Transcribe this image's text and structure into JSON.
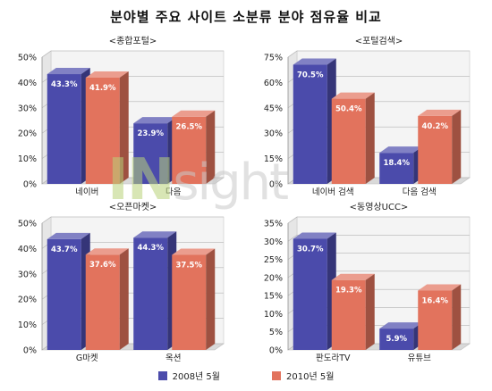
{
  "title": "분야별 주요 사이트 소분류 분야 점유율 비교",
  "watermark": {
    "left": "IN",
    "right": "sight"
  },
  "legend": {
    "items": [
      {
        "label": "2008년 5월",
        "color": "#4b4bab"
      },
      {
        "label": "2010년 5월",
        "color": "#e2735d"
      }
    ]
  },
  "colors": {
    "series1": "#4b4bab",
    "series2": "#e2735d"
  },
  "chart_data": [
    {
      "type": "bar",
      "title": "<종합포털>",
      "categories": [
        "네이버",
        "다음"
      ],
      "series": [
        {
          "name": "2008년 5월",
          "values": [
            43.3,
            23.9
          ]
        },
        {
          "name": "2010년 5월",
          "values": [
            41.9,
            26.5
          ]
        }
      ],
      "ylim": [
        0,
        50
      ],
      "yticks": [
        "0%",
        "10%",
        "20%",
        "30%",
        "40%",
        "50%"
      ],
      "labels": [
        [
          "43.3%",
          "23.9%"
        ],
        [
          "41.9%",
          "26.5%"
        ]
      ]
    },
    {
      "type": "bar",
      "title": "<포털검색>",
      "categories": [
        "네이버 검색",
        "다음 검색"
      ],
      "series": [
        {
          "name": "2008년 5월",
          "values": [
            70.5,
            18.4
          ]
        },
        {
          "name": "2010년 5월",
          "values": [
            50.4,
            40.2
          ]
        }
      ],
      "ylim": [
        0,
        75
      ],
      "yticks": [
        "0%",
        "15%",
        "30%",
        "45%",
        "60%",
        "75%"
      ],
      "labels": [
        [
          "70.5%",
          "18.4%"
        ],
        [
          "50.4%",
          "40.2%"
        ]
      ]
    },
    {
      "type": "bar",
      "title": "<오픈마켓>",
      "categories": [
        "G마켓",
        "옥션"
      ],
      "series": [
        {
          "name": "2008년 5월",
          "values": [
            43.7,
            44.3
          ]
        },
        {
          "name": "2010년 5월",
          "values": [
            37.6,
            37.5
          ]
        }
      ],
      "ylim": [
        0,
        50
      ],
      "yticks": [
        "0%",
        "10%",
        "20%",
        "30%",
        "40%",
        "50%"
      ],
      "labels": [
        [
          "43.7%",
          "44.3%"
        ],
        [
          "37.6%",
          "37.5%"
        ]
      ]
    },
    {
      "type": "bar",
      "title": "<동영상UCC>",
      "categories": [
        "판도라TV",
        "유튜브"
      ],
      "series": [
        {
          "name": "2008년 5월",
          "values": [
            30.7,
            5.9
          ]
        },
        {
          "name": "2010년 5월",
          "values": [
            19.3,
            16.4
          ]
        }
      ],
      "ylim": [
        0,
        35
      ],
      "yticks": [
        "0%",
        "5%",
        "10%",
        "15%",
        "20%",
        "25%",
        "30%",
        "35%"
      ],
      "labels": [
        [
          "30.7%",
          "5.9%"
        ],
        [
          "19.3%",
          "16.4%"
        ]
      ]
    }
  ]
}
